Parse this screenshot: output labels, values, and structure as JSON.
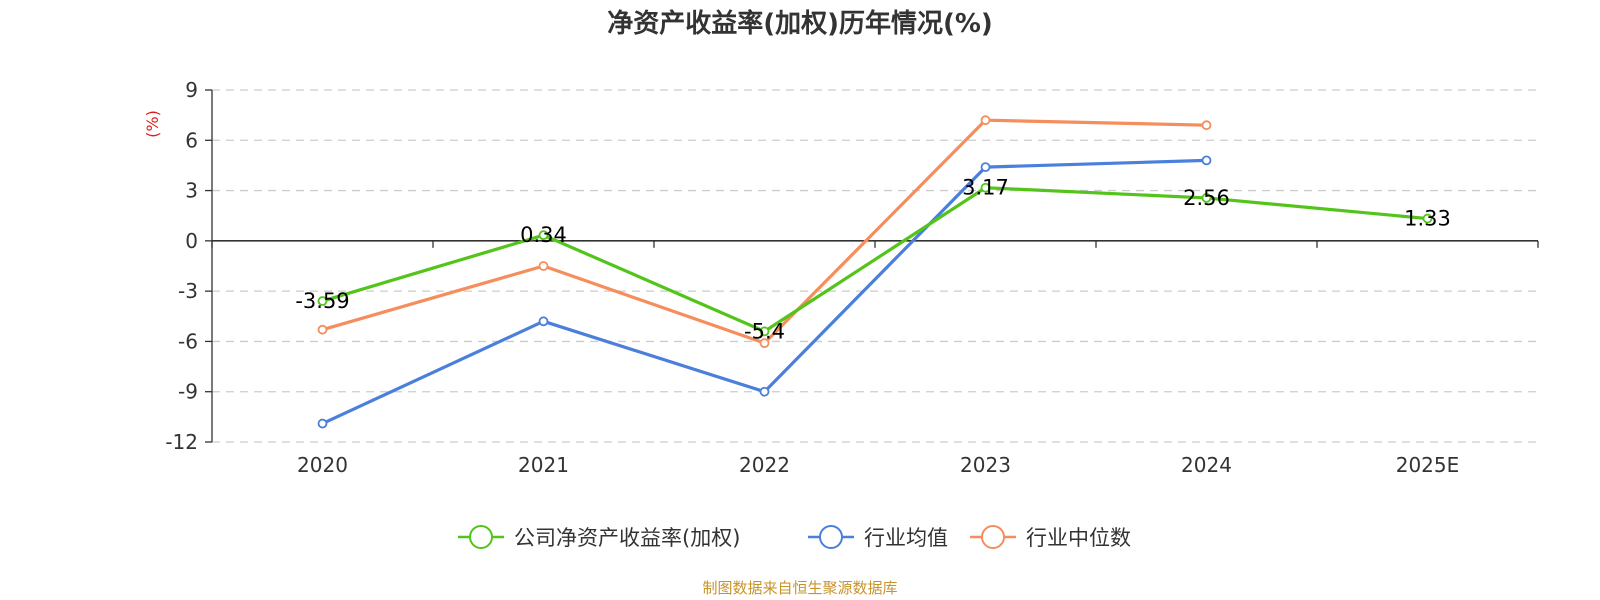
{
  "chart_data": {
    "type": "line",
    "title": "净资产收益率(加权)历年情况(%)",
    "ylabel": "(%)",
    "categories": [
      "2020",
      "2021",
      "2022",
      "2023",
      "2024",
      "2025E"
    ],
    "yticks": [
      "9",
      "6",
      "3",
      "0",
      "-3",
      "-6",
      "-9",
      "-12"
    ],
    "ylim": [
      -12,
      9
    ],
    "grid": true,
    "legend_position": "bottom",
    "series": [
      {
        "name": "公司净资产收益率(加权)",
        "color": "#52c41a",
        "values": [
          -3.59,
          0.34,
          -5.4,
          3.17,
          2.56,
          1.33
        ],
        "labels": [
          "-3.59",
          "0.34",
          "-5.4",
          "3.17",
          "2.56",
          "1.33"
        ]
      },
      {
        "name": "行业均值",
        "color": "#4a7fdb",
        "values": [
          -10.9,
          -4.8,
          -9.0,
          4.4,
          4.8,
          null
        ]
      },
      {
        "name": "行业中位数",
        "color": "#f58d5c",
        "values": [
          -5.3,
          -1.5,
          -6.1,
          7.2,
          6.9,
          null
        ]
      }
    ]
  },
  "source": "制图数据来自恒生聚源数据库",
  "colors": {
    "ylabel": "#e02020",
    "source": "#c8942a",
    "axis": "#333333",
    "grid": "#cccccc"
  }
}
